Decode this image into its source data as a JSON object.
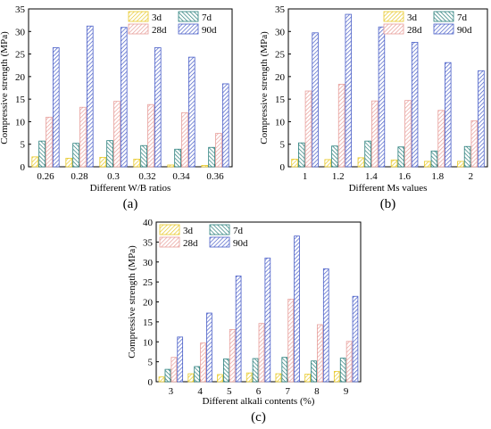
{
  "colors": {
    "3d": "#e8c92a",
    "7d": "#2a7f7c",
    "28d": "#e8a09c",
    "90d": "#4a5fc8",
    "axis": "#000000"
  },
  "chart_data": [
    {
      "id": "a",
      "type": "bar",
      "panel_label": "(a)",
      "xlabel": "Different W/B ratios",
      "ylabel": "Compressive strength (MPa)",
      "ylim": [
        0,
        35
      ],
      "yticks": [
        0,
        5,
        10,
        15,
        20,
        25,
        30,
        35
      ],
      "categories": [
        "0.26",
        "0.28",
        "0.3",
        "0.32",
        "0.34",
        "0.36"
      ],
      "series": [
        {
          "name": "3d",
          "values": [
            2.2,
            1.9,
            2.1,
            1.7,
            0.4,
            0.3
          ]
        },
        {
          "name": "7d",
          "values": [
            5.7,
            5.2,
            5.8,
            4.7,
            3.9,
            4.3
          ]
        },
        {
          "name": "28d",
          "values": [
            11.0,
            13.2,
            14.5,
            13.8,
            12.0,
            7.4
          ]
        },
        {
          "name": "90d",
          "values": [
            26.4,
            31.2,
            30.9,
            26.4,
            24.3,
            18.4
          ]
        }
      ],
      "legend": {
        "position": "top-right",
        "order": [
          "3d",
          "7d",
          "28d",
          "90d"
        ]
      }
    },
    {
      "id": "b",
      "type": "bar",
      "panel_label": "(b)",
      "xlabel": "Different Ms values",
      "ylabel": "Compressive strength (MPa)",
      "ylim": [
        0,
        35
      ],
      "yticks": [
        0,
        5,
        10,
        15,
        20,
        25,
        30,
        35
      ],
      "categories": [
        "1",
        "1.2",
        "1.4",
        "1.6",
        "1.8",
        "2"
      ],
      "series": [
        {
          "name": "3d",
          "values": [
            1.7,
            1.6,
            2.0,
            1.5,
            1.2,
            1.2
          ]
        },
        {
          "name": "7d",
          "values": [
            5.3,
            4.6,
            5.7,
            4.4,
            3.5,
            4.5
          ]
        },
        {
          "name": "28d",
          "values": [
            16.8,
            18.3,
            14.6,
            14.7,
            12.5,
            10.2
          ]
        },
        {
          "name": "90d",
          "values": [
            29.7,
            33.8,
            31.0,
            27.6,
            23.1,
            21.3
          ]
        }
      ],
      "legend": {
        "position": "top-right",
        "order": [
          "3d",
          "7d",
          "28d",
          "90d"
        ]
      }
    },
    {
      "id": "c",
      "type": "bar",
      "panel_label": "(c)",
      "xlabel": "Different alkali contents (%)",
      "ylabel": "Compressive strength (MPa)",
      "ylim": [
        0,
        40
      ],
      "yticks": [
        0,
        5,
        10,
        15,
        20,
        25,
        30,
        35,
        40
      ],
      "categories": [
        "3",
        "4",
        "5",
        "6",
        "7",
        "8",
        "9"
      ],
      "series": [
        {
          "name": "3d",
          "values": [
            1.2,
            2.0,
            1.8,
            2.2,
            2.0,
            1.9,
            2.6
          ]
        },
        {
          "name": "7d",
          "values": [
            3.1,
            3.8,
            5.7,
            5.8,
            6.1,
            5.2,
            5.9
          ]
        },
        {
          "name": "28d",
          "values": [
            6.1,
            9.7,
            13.1,
            14.6,
            20.7,
            14.3,
            10.1
          ]
        },
        {
          "name": "90d",
          "values": [
            11.2,
            17.2,
            26.5,
            31.0,
            36.5,
            28.3,
            21.4
          ]
        }
      ],
      "legend": {
        "position": "top-left",
        "order": [
          "3d",
          "7d",
          "28d",
          "90d"
        ]
      }
    }
  ]
}
